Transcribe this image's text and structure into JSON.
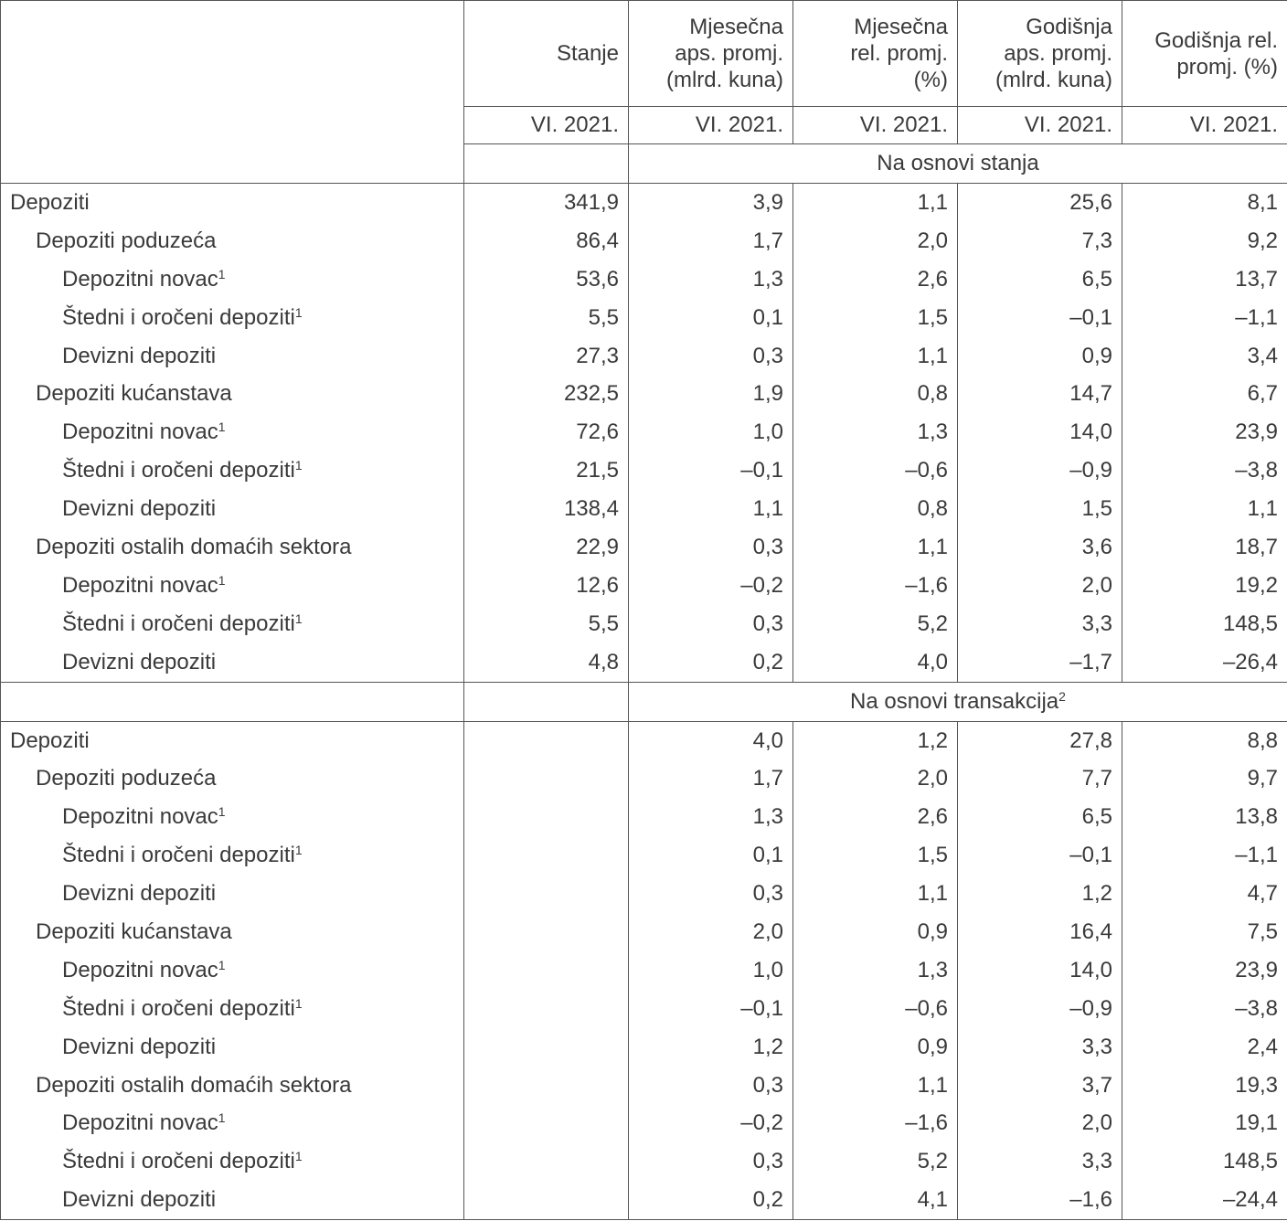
{
  "header": {
    "columns": [
      "Stanje",
      "Mjesečna aps. promj. (mlrd. kuna)",
      "Mjesečna rel. promj. (%)",
      "Godišnja aps. promj. (mlrd. kuna)",
      "Godišnja rel. promj. (%)"
    ],
    "columns_lines": [
      [
        "Stanje"
      ],
      [
        "Mjesečna",
        "aps. promj.",
        "(mlrd. kuna)"
      ],
      [
        "Mjesečna",
        "rel. promj.",
        "(%)"
      ],
      [
        "Godišnja",
        "aps. promj.",
        "(mlrd. kuna)"
      ],
      [
        "Godišnja rel.",
        "promj. (%)"
      ]
    ],
    "periods": [
      "VI. 2021.",
      "VI. 2021.",
      "VI. 2021.",
      "VI. 2021.",
      "VI. 2021."
    ]
  },
  "sections": [
    {
      "title": "Na osnovi stanja",
      "title_sup": "",
      "rows": [
        {
          "label": "Depoziti",
          "sup": "",
          "level": 0,
          "values": [
            "341,9",
            "3,9",
            "1,1",
            "25,6",
            "8,1"
          ]
        },
        {
          "label": "Depoziti poduzeća",
          "sup": "",
          "level": 1,
          "values": [
            "86,4",
            "1,7",
            "2,0",
            "7,3",
            "9,2"
          ]
        },
        {
          "label": "Depozitni novac",
          "sup": "1",
          "level": 2,
          "values": [
            "53,6",
            "1,3",
            "2,6",
            "6,5",
            "13,7"
          ]
        },
        {
          "label": "Štedni i oročeni depoziti",
          "sup": "1",
          "level": 2,
          "values": [
            "5,5",
            "0,1",
            "1,5",
            "–0,1",
            "–1,1"
          ]
        },
        {
          "label": "Devizni depoziti",
          "sup": "",
          "level": 2,
          "values": [
            "27,3",
            "0,3",
            "1,1",
            "0,9",
            "3,4"
          ]
        },
        {
          "label": "Depoziti kućanstava",
          "sup": "",
          "level": 1,
          "values": [
            "232,5",
            "1,9",
            "0,8",
            "14,7",
            "6,7"
          ]
        },
        {
          "label": "Depozitni novac",
          "sup": "1",
          "level": 2,
          "values": [
            "72,6",
            "1,0",
            "1,3",
            "14,0",
            "23,9"
          ]
        },
        {
          "label": "Štedni i oročeni depoziti",
          "sup": "1",
          "level": 2,
          "values": [
            "21,5",
            "–0,1",
            "–0,6",
            "–0,9",
            "–3,8"
          ]
        },
        {
          "label": "Devizni depoziti",
          "sup": "",
          "level": 2,
          "values": [
            "138,4",
            "1,1",
            "0,8",
            "1,5",
            "1,1"
          ]
        },
        {
          "label": "Depoziti ostalih domaćih sektora",
          "sup": "",
          "level": 1,
          "values": [
            "22,9",
            "0,3",
            "1,1",
            "3,6",
            "18,7"
          ]
        },
        {
          "label": "Depozitni novac",
          "sup": "1",
          "level": 2,
          "values": [
            "12,6",
            "–0,2",
            "–1,6",
            "2,0",
            "19,2"
          ]
        },
        {
          "label": "Štedni i oročeni depoziti",
          "sup": "1",
          "level": 2,
          "values": [
            "5,5",
            "0,3",
            "5,2",
            "3,3",
            "148,5"
          ]
        },
        {
          "label": "Devizni depoziti",
          "sup": "",
          "level": 2,
          "values": [
            "4,8",
            "0,2",
            "4,0",
            "–1,7",
            "–26,4"
          ]
        }
      ]
    },
    {
      "title": "Na osnovi transakcija",
      "title_sup": "2",
      "rows": [
        {
          "label": "Depoziti",
          "sup": "",
          "level": 0,
          "values": [
            "",
            "4,0",
            "1,2",
            "27,8",
            "8,8"
          ]
        },
        {
          "label": "Depoziti poduzeća",
          "sup": "",
          "level": 1,
          "values": [
            "",
            "1,7",
            "2,0",
            "7,7",
            "9,7"
          ]
        },
        {
          "label": "Depozitni novac",
          "sup": "1",
          "level": 2,
          "values": [
            "",
            "1,3",
            "2,6",
            "6,5",
            "13,8"
          ]
        },
        {
          "label": "Štedni i oročeni depoziti",
          "sup": "1",
          "level": 2,
          "values": [
            "",
            "0,1",
            "1,5",
            "–0,1",
            "–1,1"
          ]
        },
        {
          "label": "Devizni depoziti",
          "sup": "",
          "level": 2,
          "values": [
            "",
            "0,3",
            "1,1",
            "1,2",
            "4,7"
          ]
        },
        {
          "label": "Depoziti kućanstava",
          "sup": "",
          "level": 1,
          "values": [
            "",
            "2,0",
            "0,9",
            "16,4",
            "7,5"
          ]
        },
        {
          "label": "Depozitni novac",
          "sup": "1",
          "level": 2,
          "values": [
            "",
            "1,0",
            "1,3",
            "14,0",
            "23,9"
          ]
        },
        {
          "label": "Štedni i oročeni depoziti",
          "sup": "1",
          "level": 2,
          "values": [
            "",
            "–0,1",
            "–0,6",
            "–0,9",
            "–3,8"
          ]
        },
        {
          "label": "Devizni depoziti",
          "sup": "",
          "level": 2,
          "values": [
            "",
            "1,2",
            "0,9",
            "3,3",
            "2,4"
          ]
        },
        {
          "label": "Depoziti ostalih domaćih sektora",
          "sup": "",
          "level": 1,
          "values": [
            "",
            "0,3",
            "1,1",
            "3,7",
            "19,3"
          ]
        },
        {
          "label": "Depozitni novac",
          "sup": "1",
          "level": 2,
          "values": [
            "",
            "–0,2",
            "–1,6",
            "2,0",
            "19,1"
          ]
        },
        {
          "label": "Štedni i oročeni depoziti",
          "sup": "1",
          "level": 2,
          "values": [
            "",
            "0,3",
            "5,2",
            "3,3",
            "148,5"
          ]
        },
        {
          "label": "Devizni depoziti",
          "sup": "",
          "level": 2,
          "values": [
            "",
            "0,2",
            "4,1",
            "–1,6",
            "–24,4"
          ]
        }
      ]
    }
  ]
}
